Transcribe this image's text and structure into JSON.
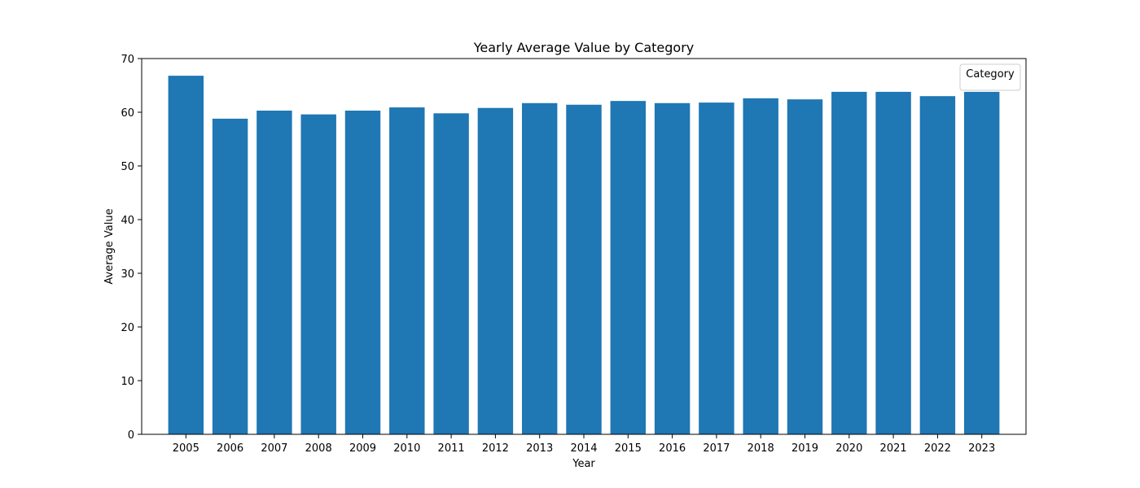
{
  "chart_data": {
    "type": "bar",
    "title": "Yearly Average Value by Category",
    "xlabel": "Year",
    "ylabel": "Average Value",
    "categories": [
      "2005",
      "2006",
      "2007",
      "2008",
      "2009",
      "2010",
      "2011",
      "2012",
      "2013",
      "2014",
      "2015",
      "2016",
      "2017",
      "2018",
      "2019",
      "2020",
      "2021",
      "2022",
      "2023"
    ],
    "values": [
      66.8,
      58.8,
      60.3,
      59.6,
      60.3,
      60.9,
      59.8,
      60.8,
      61.7,
      61.4,
      62.1,
      61.7,
      61.8,
      62.6,
      62.4,
      63.8,
      63.8,
      63.0,
      63.8
    ],
    "ylim": [
      0,
      70
    ],
    "yticks": [
      0,
      10,
      20,
      30,
      40,
      50,
      60,
      70
    ],
    "legend": {
      "title": "Category",
      "placement": "upper-right",
      "entries": []
    },
    "grid": false,
    "bar_color": "#1f77b4"
  }
}
